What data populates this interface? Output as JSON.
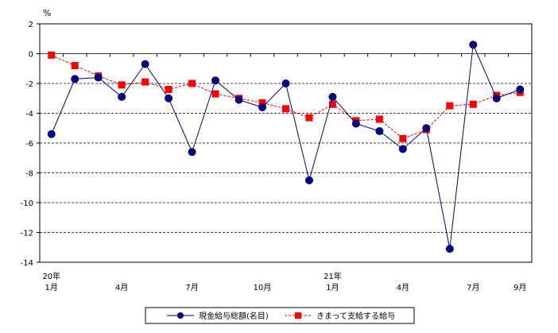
{
  "chart_data": {
    "type": "line",
    "ylabel": "%",
    "ylim": [
      -14,
      2
    ],
    "yticks": [
      2,
      0,
      -2,
      -4,
      -6,
      -8,
      -10,
      -12,
      -14
    ],
    "grid": "horizontal-dashed",
    "x_tick_labels": [
      {
        "index": 0,
        "year": "20年",
        "month": "1月"
      },
      {
        "index": 3,
        "year": "",
        "month": "4月"
      },
      {
        "index": 6,
        "year": "",
        "month": "7月"
      },
      {
        "index": 9,
        "year": "",
        "month": "10月"
      },
      {
        "index": 12,
        "year": "21年",
        "month": "1月"
      },
      {
        "index": 15,
        "year": "",
        "month": "4月"
      },
      {
        "index": 18,
        "year": "",
        "month": "7月"
      },
      {
        "index": 20,
        "year": "",
        "month": "9月"
      }
    ],
    "x": [
      "20年1月",
      "2月",
      "3月",
      "4月",
      "5月",
      "6月",
      "7月",
      "8月",
      "9月",
      "10月",
      "11月",
      "12月",
      "21年1月",
      "2月",
      "3月",
      "4月",
      "5月",
      "6月",
      "7月",
      "8月",
      "9月"
    ],
    "series": [
      {
        "name": "現金給与総額(名目)",
        "color": "#000080",
        "marker": "circle",
        "line": "solid",
        "values": [
          -5.4,
          -1.7,
          -1.6,
          -2.9,
          -0.7,
          -3.0,
          -6.6,
          -1.8,
          -3.1,
          -3.6,
          -2.0,
          -8.5,
          -2.9,
          -4.7,
          -5.2,
          -6.4,
          -5.0,
          -13.1,
          0.6,
          -3.0,
          -2.4
        ]
      },
      {
        "name": "きまって支給する給与",
        "color": "#ff0000",
        "marker": "square",
        "line": "dashed",
        "values": [
          -0.1,
          -0.8,
          -1.5,
          -2.1,
          -1.9,
          -2.4,
          -2.0,
          -2.7,
          -3.0,
          -3.3,
          -3.7,
          -4.3,
          -3.4,
          -4.5,
          -4.4,
          -5.7,
          -5.1,
          -3.5,
          -3.4,
          -2.8,
          -2.6
        ]
      }
    ],
    "legend": "bottom-center"
  }
}
